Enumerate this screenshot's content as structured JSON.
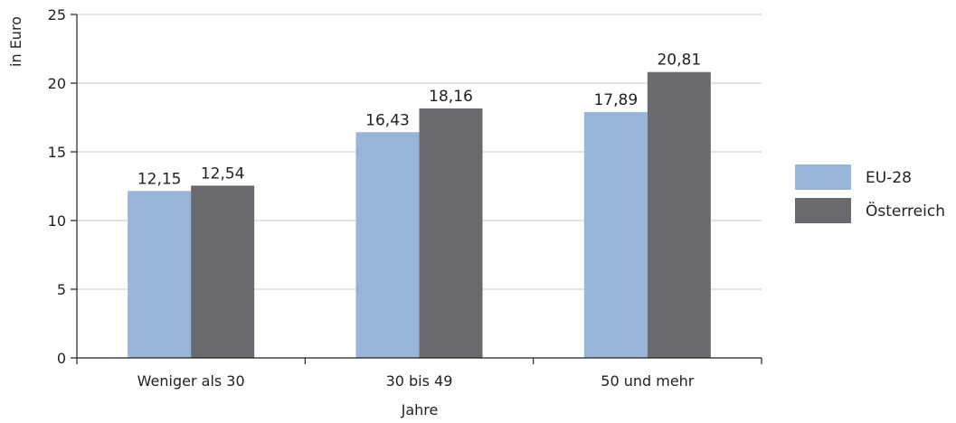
{
  "chart_data": {
    "type": "bar",
    "categories": [
      "Weniger als 30",
      "30 bis 49",
      "50 und mehr"
    ],
    "series": [
      {
        "name": "EU-28",
        "values": [
          12.15,
          16.43,
          17.89
        ],
        "labels": [
          "12,15",
          "16,43",
          "17,89"
        ],
        "color": "#98b4d6"
      },
      {
        "name": "Österreich",
        "values": [
          12.54,
          18.16,
          20.81
        ],
        "labels": [
          "12,54",
          "18,16",
          "20,81"
        ],
        "color": "#6a6a6e"
      }
    ],
    "xlabel": "Jahre",
    "ylabel": "in Euro",
    "ylim": [
      0,
      25
    ],
    "yticks": [
      0,
      5,
      10,
      15,
      20,
      25
    ],
    "grid": true,
    "legend_position": "right"
  }
}
